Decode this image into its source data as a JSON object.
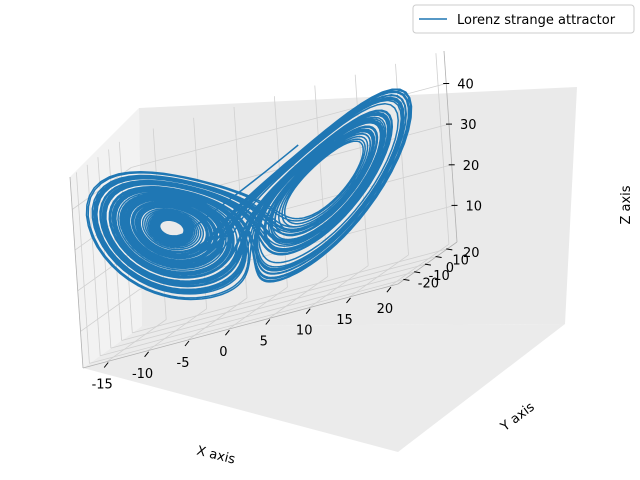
{
  "chart_data": {
    "type": "line",
    "projection": "3d",
    "title": "",
    "xlabel": "X axis",
    "ylabel": "Y axis",
    "zlabel": "Z axis",
    "xlim": [
      -18,
      21
    ],
    "ylim": [
      -26,
      29
    ],
    "zlim": [
      1,
      48
    ],
    "x_ticks": [
      "-15",
      "-10",
      "-5",
      "0",
      "5",
      "10",
      "15",
      "20"
    ],
    "y_ticks": [
      "-20",
      "-10",
      "0",
      "10",
      "20"
    ],
    "z_ticks": [
      "10",
      "20",
      "30",
      "40"
    ],
    "grid": true,
    "legend": {
      "position": "top-right",
      "entries": [
        "Lorenz strange attractor"
      ]
    },
    "series": [
      {
        "name": "Lorenz strange attractor",
        "color": "#1f77b4",
        "generator": "lorenz",
        "sigma": 10,
        "rho": 28,
        "beta": 2.6667,
        "initial_point": [
          0,
          1,
          1.05
        ]
      }
    ]
  }
}
